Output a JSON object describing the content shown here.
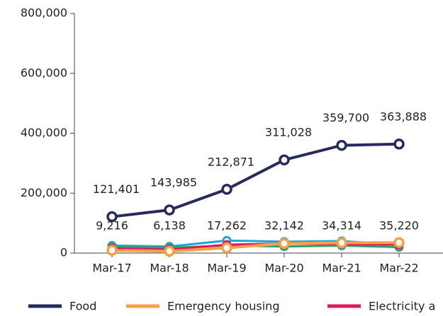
{
  "chart_data": {
    "type": "line",
    "categories": [
      "Mar-17",
      "Mar-18",
      "Mar-19",
      "Mar-20",
      "Mar-21",
      "Mar-22"
    ],
    "series": [
      {
        "color": "#1fa3d8",
        "values": [
          25000,
          22000,
          42000,
          38000,
          40000,
          28000
        ]
      },
      {
        "color": "#2e9e6e",
        "values": [
          20000,
          18000,
          25000,
          22000,
          25000,
          20000
        ]
      },
      {
        "name": "Electricity a",
        "color": "#e0185a",
        "values": [
          15000,
          12000,
          28000,
          32000,
          30000,
          28000
        ]
      },
      {
        "name": "Emergency housing",
        "color": "#f5a04a",
        "values": [
          9216,
          6138,
          17262,
          32142,
          34314,
          35220
        ],
        "value_labels": [
          "9,216",
          "6,138",
          "17,262",
          "32,142",
          "34,314",
          "35,220"
        ]
      },
      {
        "name": "Food",
        "color": "#262a5e",
        "values": [
          121401,
          143985,
          212871,
          311028,
          359700,
          363888
        ],
        "value_labels": [
          "121,401",
          "143,985",
          "212,871",
          "311,028",
          "359,700",
          "363,888"
        ]
      }
    ],
    "legend_order": [
      4,
      3,
      2
    ],
    "ylim": [
      0,
      800000
    ],
    "yticks": [
      0,
      {
        "value": 200000,
        "label": "200,000"
      },
      {
        "value": 400000,
        "label": "400,000"
      },
      {
        "value": 600000,
        "label": "600,000"
      },
      {
        "value": 800000,
        "label": "800,000"
      }
    ]
  }
}
